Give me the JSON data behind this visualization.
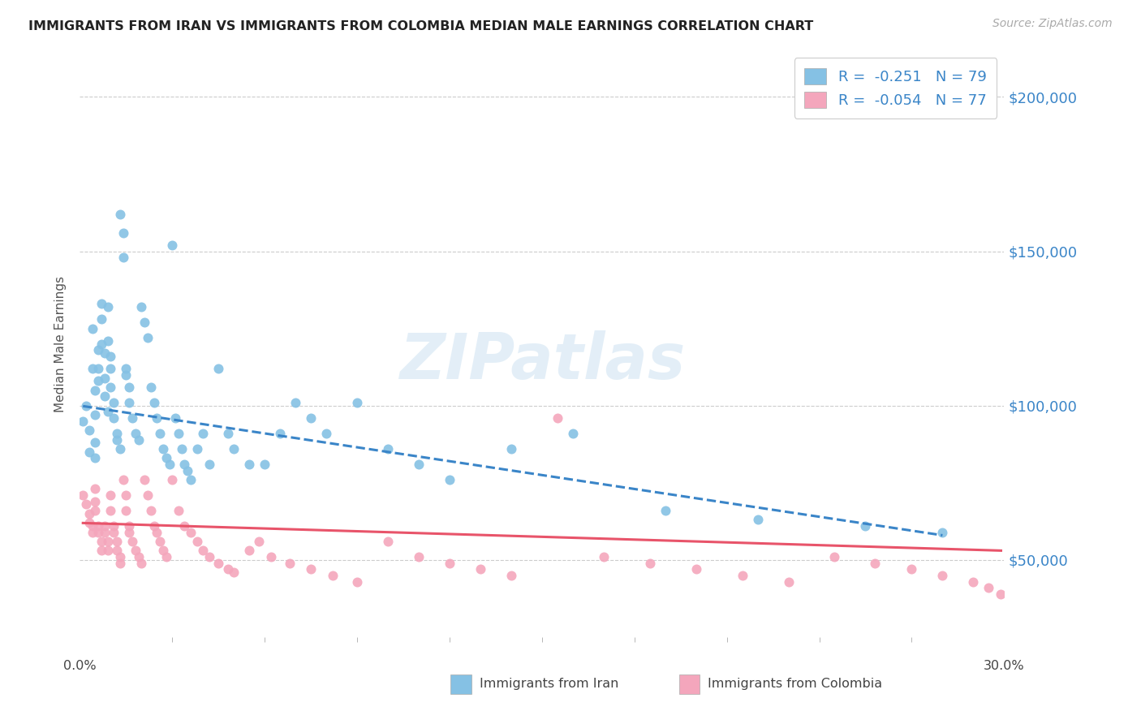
{
  "title": "IMMIGRANTS FROM IRAN VS IMMIGRANTS FROM COLOMBIA MEDIAN MALE EARNINGS CORRELATION CHART",
  "source": "Source: ZipAtlas.com",
  "ylabel": "Median Male Earnings",
  "legend_iran": "R =  -0.251   N = 79",
  "legend_colombia": "R =  -0.054   N = 77",
  "watermark": "ZIPatlas",
  "yticks": [
    50000,
    100000,
    150000,
    200000
  ],
  "ytick_labels": [
    "$50,000",
    "$100,000",
    "$150,000",
    "$200,000"
  ],
  "xlim": [
    0.0,
    0.3
  ],
  "ylim": [
    25000,
    215000
  ],
  "color_iran": "#85c1e4",
  "color_colombia": "#f4a6bc",
  "line_color_iran": "#3a85c8",
  "line_color_colombia": "#e8546a",
  "legend_text_color": "#3a85c8",
  "background": "#ffffff",
  "iran_slope": -150000,
  "iran_intercept": 100000,
  "colombia_slope": -30000,
  "colombia_intercept": 62000,
  "iran_x": [
    0.001,
    0.002,
    0.003,
    0.003,
    0.004,
    0.004,
    0.005,
    0.005,
    0.005,
    0.005,
    0.006,
    0.006,
    0.006,
    0.007,
    0.007,
    0.007,
    0.008,
    0.008,
    0.008,
    0.009,
    0.009,
    0.009,
    0.01,
    0.01,
    0.01,
    0.011,
    0.011,
    0.012,
    0.012,
    0.013,
    0.013,
    0.014,
    0.014,
    0.015,
    0.015,
    0.016,
    0.016,
    0.017,
    0.018,
    0.019,
    0.02,
    0.021,
    0.022,
    0.023,
    0.024,
    0.025,
    0.026,
    0.027,
    0.028,
    0.029,
    0.03,
    0.031,
    0.032,
    0.033,
    0.034,
    0.035,
    0.036,
    0.038,
    0.04,
    0.042,
    0.045,
    0.048,
    0.05,
    0.055,
    0.06,
    0.065,
    0.07,
    0.075,
    0.08,
    0.09,
    0.1,
    0.11,
    0.12,
    0.14,
    0.16,
    0.19,
    0.22,
    0.255,
    0.28
  ],
  "iran_y": [
    95000,
    100000,
    92000,
    85000,
    125000,
    112000,
    105000,
    97000,
    88000,
    83000,
    118000,
    112000,
    108000,
    133000,
    128000,
    120000,
    117000,
    109000,
    103000,
    98000,
    132000,
    121000,
    116000,
    112000,
    106000,
    101000,
    96000,
    91000,
    89000,
    86000,
    162000,
    156000,
    148000,
    112000,
    110000,
    106000,
    101000,
    96000,
    91000,
    89000,
    132000,
    127000,
    122000,
    106000,
    101000,
    96000,
    91000,
    86000,
    83000,
    81000,
    152000,
    96000,
    91000,
    86000,
    81000,
    79000,
    76000,
    86000,
    91000,
    81000,
    112000,
    91000,
    86000,
    81000,
    81000,
    91000,
    101000,
    96000,
    91000,
    101000,
    86000,
    81000,
    76000,
    86000,
    91000,
    66000,
    63000,
    61000,
    59000
  ],
  "colombia_x": [
    0.001,
    0.002,
    0.003,
    0.003,
    0.004,
    0.004,
    0.005,
    0.005,
    0.005,
    0.006,
    0.006,
    0.007,
    0.007,
    0.008,
    0.008,
    0.009,
    0.009,
    0.01,
    0.01,
    0.011,
    0.011,
    0.012,
    0.012,
    0.013,
    0.013,
    0.014,
    0.015,
    0.015,
    0.016,
    0.016,
    0.017,
    0.018,
    0.019,
    0.02,
    0.021,
    0.022,
    0.023,
    0.024,
    0.025,
    0.026,
    0.027,
    0.028,
    0.03,
    0.032,
    0.034,
    0.036,
    0.038,
    0.04,
    0.042,
    0.045,
    0.048,
    0.05,
    0.055,
    0.058,
    0.062,
    0.068,
    0.075,
    0.082,
    0.09,
    0.1,
    0.11,
    0.12,
    0.13,
    0.14,
    0.155,
    0.17,
    0.185,
    0.2,
    0.215,
    0.23,
    0.245,
    0.258,
    0.27,
    0.28,
    0.29,
    0.295,
    0.299
  ],
  "colombia_y": [
    71000,
    68000,
    65000,
    62000,
    61000,
    59000,
    73000,
    69000,
    66000,
    61000,
    59000,
    56000,
    53000,
    61000,
    59000,
    56000,
    53000,
    71000,
    66000,
    61000,
    59000,
    56000,
    53000,
    51000,
    49000,
    76000,
    71000,
    66000,
    61000,
    59000,
    56000,
    53000,
    51000,
    49000,
    76000,
    71000,
    66000,
    61000,
    59000,
    56000,
    53000,
    51000,
    76000,
    66000,
    61000,
    59000,
    56000,
    53000,
    51000,
    49000,
    47000,
    46000,
    53000,
    56000,
    51000,
    49000,
    47000,
    45000,
    43000,
    56000,
    51000,
    49000,
    47000,
    45000,
    96000,
    51000,
    49000,
    47000,
    45000,
    43000,
    51000,
    49000,
    47000,
    45000,
    43000,
    41000,
    39000
  ]
}
